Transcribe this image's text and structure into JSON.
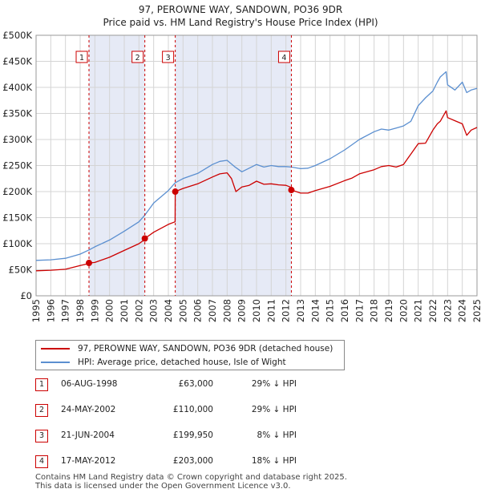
{
  "title_line1": "97, PEROWNE WAY, SANDOWN, PO36 9DR",
  "title_line2": "Price paid vs. HM Land Registry's House Price Index (HPI)",
  "colors": {
    "property": "#cc0000",
    "hpi": "#5b8fd0",
    "shade": "#e6eaf6",
    "grid": "#d4d4d4",
    "marker": "#cc0000"
  },
  "legend": {
    "property_label": "97, PEROWNE WAY, SANDOWN, PO36 9DR (detached house)",
    "hpi_label": "HPI: Average price, detached house, Isle of Wight"
  },
  "sales": [
    {
      "num": "1",
      "date": "06-AUG-1998",
      "price": "£63,000",
      "hpi_diff": "29% ↓ HPI"
    },
    {
      "num": "2",
      "date": "24-MAY-2002",
      "price": "£110,000",
      "hpi_diff": "29% ↓ HPI"
    },
    {
      "num": "3",
      "date": "21-JUN-2004",
      "price": "£199,950",
      "hpi_diff": "8% ↓ HPI"
    },
    {
      "num": "4",
      "date": "17-MAY-2012",
      "price": "£203,000",
      "hpi_diff": "18% ↓ HPI"
    }
  ],
  "footer_line1": "Contains HM Land Registry data © Crown copyright and database right 2025.",
  "footer_line2": "This data is licensed under the Open Government Licence v3.0.",
  "chart_data": {
    "type": "line",
    "title": "97, PEROWNE WAY, SANDOWN, PO36 9DR",
    "subtitle": "Price paid vs. HM Land Registry's House Price Index (HPI)",
    "xlabel": "",
    "ylabel": "",
    "xlim": [
      1995,
      2025
    ],
    "ylim": [
      0,
      500000
    ],
    "grid": true,
    "legend_position": "below",
    "x_ticks": [
      "1995",
      "1996",
      "1997",
      "1998",
      "1999",
      "2000",
      "2001",
      "2002",
      "2003",
      "2004",
      "2005",
      "2006",
      "2007",
      "2008",
      "2009",
      "2010",
      "2011",
      "2012",
      "2013",
      "2014",
      "2015",
      "2016",
      "2017",
      "2018",
      "2019",
      "2020",
      "2021",
      "2022",
      "2023",
      "2024",
      "2025"
    ],
    "y_ticks": [
      {
        "value": 0,
        "label": "£0"
      },
      {
        "value": 50000,
        "label": "£50K"
      },
      {
        "value": 100000,
        "label": "£100K"
      },
      {
        "value": 150000,
        "label": "£150K"
      },
      {
        "value": 200000,
        "label": "£200K"
      },
      {
        "value": 250000,
        "label": "£250K"
      },
      {
        "value": 300000,
        "label": "£300K"
      },
      {
        "value": 350000,
        "label": "£350K"
      },
      {
        "value": 400000,
        "label": "£400K"
      },
      {
        "value": 450000,
        "label": "£450K"
      },
      {
        "value": 500000,
        "label": "£500K"
      }
    ],
    "shaded_ranges": [
      [
        1998.6,
        2002.4
      ],
      [
        2004.47,
        2012.37
      ]
    ],
    "markers": [
      {
        "label": "1",
        "x": 1998.6,
        "y": 63000
      },
      {
        "label": "2",
        "x": 2002.4,
        "y": 110000
      },
      {
        "label": "3",
        "x": 2004.47,
        "y": 199950
      },
      {
        "label": "4",
        "x": 2012.37,
        "y": 203000
      }
    ],
    "series": [
      {
        "name": "97, PEROWNE WAY, SANDOWN, PO36 9DR (detached house)",
        "color": "#cc0000",
        "x": [
          1995,
          1996,
          1997,
          1998,
          1998.59,
          1998.6,
          1999,
          2000,
          2001,
          2002,
          2002.39,
          2002.4,
          2003,
          2004,
          2004.46,
          2004.47,
          2005,
          2006,
          2007,
          2007.5,
          2008,
          2008.3,
          2008.6,
          2009,
          2009.5,
          2010,
          2010.5,
          2011,
          2011.5,
          2012,
          2012.36,
          2012.37,
          2013,
          2013.5,
          2014,
          2015,
          2016,
          2016.5,
          2017,
          2018,
          2018.5,
          2019,
          2019.5,
          2020,
          2020.5,
          2021,
          2021.5,
          2022,
          2022.3,
          2022.5,
          2022.9,
          2023,
          2023.5,
          2024,
          2024.3,
          2024.6,
          2025
        ],
        "values": [
          48000,
          49000,
          51000,
          58000,
          62000,
          63000,
          64000,
          74000,
          87000,
          100000,
          108000,
          110000,
          122000,
          137000,
          142000,
          199950,
          206000,
          215000,
          228000,
          234000,
          236000,
          225000,
          200000,
          209000,
          212000,
          220000,
          214000,
          215000,
          213000,
          212000,
          208000,
          203000,
          197000,
          197000,
          202000,
          210000,
          221000,
          226000,
          234000,
          242000,
          248000,
          250000,
          247000,
          252000,
          272000,
          292000,
          293000,
          318000,
          330000,
          335000,
          355000,
          342000,
          336000,
          330000,
          308000,
          318000,
          323000
        ]
      },
      {
        "name": "HPI: Average price, detached house, Isle of Wight",
        "color": "#5b8fd0",
        "x": [
          1995,
          1996,
          1997,
          1998,
          1998.6,
          1999,
          2000,
          2001,
          2002,
          2002.4,
          2003,
          2004,
          2004.47,
          2005,
          2006,
          2007,
          2007.5,
          2008,
          2008.5,
          2009,
          2009.5,
          2010,
          2010.5,
          2011,
          2011.5,
          2012,
          2012.37,
          2013,
          2013.5,
          2014,
          2015,
          2016,
          2016.5,
          2017,
          2018,
          2018.5,
          2019,
          2019.5,
          2020,
          2020.5,
          2021,
          2021.5,
          2022,
          2022.3,
          2022.5,
          2022.9,
          2023,
          2023.5,
          2024,
          2024.3,
          2024.6,
          2025
        ],
        "values": [
          68000,
          69000,
          72000,
          80000,
          88000,
          94000,
          107000,
          124000,
          142000,
          155000,
          178000,
          202000,
          217000,
          225000,
          235000,
          252000,
          258000,
          260000,
          248000,
          238000,
          245000,
          252000,
          247000,
          250000,
          248000,
          248000,
          247000,
          244000,
          245000,
          250000,
          263000,
          280000,
          290000,
          300000,
          315000,
          320000,
          318000,
          322000,
          326000,
          335000,
          365000,
          380000,
          393000,
          410000,
          420000,
          430000,
          405000,
          395000,
          410000,
          390000,
          395000,
          398000
        ]
      }
    ]
  }
}
